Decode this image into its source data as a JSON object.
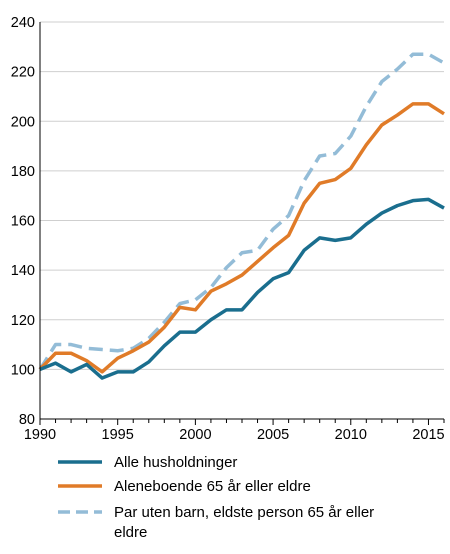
{
  "chart_data": {
    "type": "line",
    "title": "",
    "xlabel": "",
    "ylabel": "",
    "xlim": [
      1990,
      2016
    ],
    "ylim": [
      80,
      240
    ],
    "x_ticks": [
      "1990",
      "1995",
      "2000",
      "2005",
      "2010",
      "2015"
    ],
    "y_ticks": [
      "80",
      "100",
      "120",
      "140",
      "160",
      "180",
      "200",
      "220",
      "240"
    ],
    "grid": "horizontal",
    "legend_position": "bottom",
    "x": [
      1990,
      1991,
      1992,
      1993,
      1994,
      1995,
      1996,
      1997,
      1998,
      1999,
      2000,
      2001,
      2002,
      2003,
      2004,
      2005,
      2006,
      2007,
      2008,
      2009,
      2010,
      2011,
      2012,
      2013,
      2014,
      2015,
      2016
    ],
    "series": [
      {
        "name": "Alle husholdninger",
        "color": "#1a6e8e",
        "style": "solid",
        "values": [
          100,
          102.5,
          99,
          102,
          96.5,
          99,
          99,
          103,
          109.5,
          115,
          115,
          120,
          124,
          124,
          131,
          136.5,
          139,
          148,
          153,
          152,
          153,
          158.5,
          163,
          166,
          168,
          168.5,
          165
        ]
      },
      {
        "name": "Aleneboende 65 år eller eldre",
        "color": "#e07b28",
        "style": "solid",
        "values": [
          100,
          106.5,
          106.5,
          103.5,
          99,
          104.5,
          107.5,
          111,
          117,
          125,
          124,
          131.5,
          134.5,
          138,
          143.5,
          149,
          154,
          167,
          175,
          176.5,
          181,
          190.5,
          198.5,
          202.5,
          207,
          207,
          203
        ]
      },
      {
        "name": "Par uten barn, eldste person 65 år eller eldre",
        "color": "#93bcd7",
        "style": "dashed",
        "values": [
          100,
          110,
          110,
          108.5,
          108,
          107.5,
          108.5,
          112.5,
          119,
          126.5,
          128,
          133,
          141,
          147,
          148,
          156.5,
          162,
          176,
          186,
          187,
          194,
          206,
          216,
          221,
          227,
          227,
          223.5
        ]
      }
    ]
  }
}
